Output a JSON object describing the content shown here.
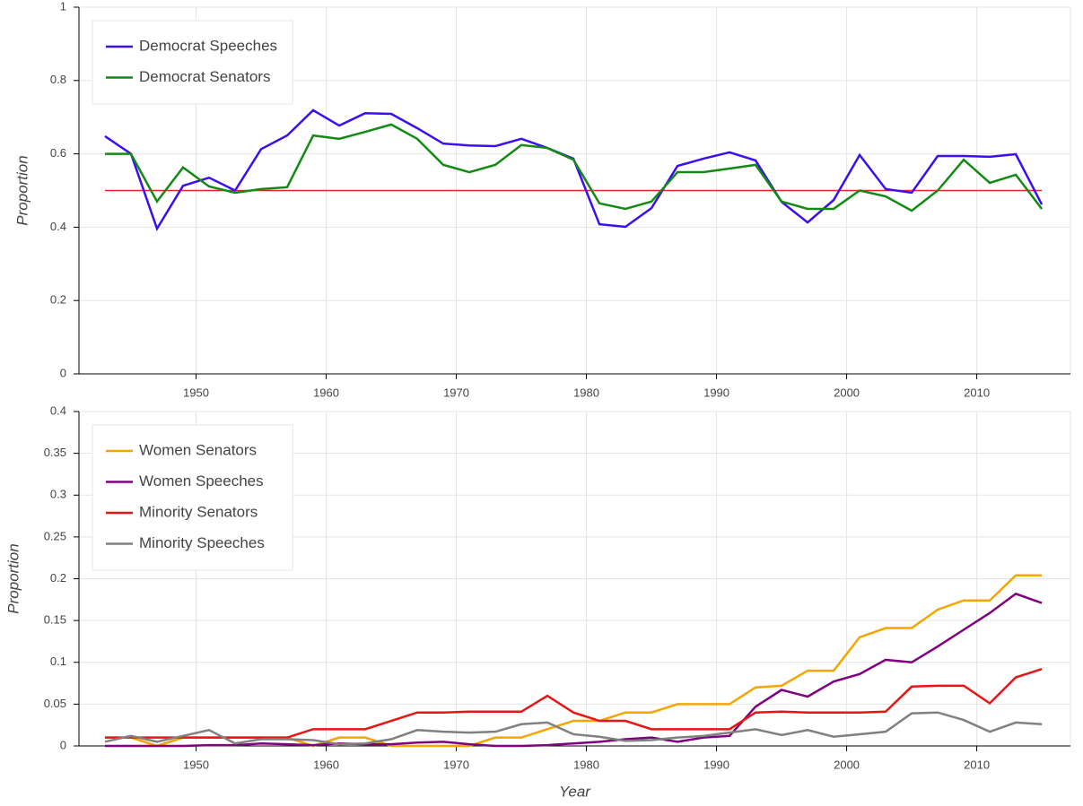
{
  "chart_data": [
    {
      "type": "line",
      "ylabel": "Proportion",
      "x": [
        1943,
        1945,
        1947,
        1949,
        1951,
        1953,
        1955,
        1957,
        1959,
        1961,
        1963,
        1965,
        1967,
        1969,
        1971,
        1973,
        1975,
        1977,
        1979,
        1981,
        1983,
        1985,
        1987,
        1989,
        1991,
        1993,
        1995,
        1997,
        1999,
        2001,
        2003,
        2005,
        2007,
        2009,
        2011,
        2013,
        2015
      ],
      "series": [
        {
          "name": "Democrat Speeches",
          "color": "#3c0ff2",
          "values": [
            0.648,
            0.6,
            0.396,
            0.513,
            0.535,
            0.5,
            0.613,
            0.65,
            0.719,
            0.677,
            0.711,
            0.709,
            0.67,
            0.628,
            0.623,
            0.621,
            0.641,
            0.616,
            0.587,
            0.408,
            0.401,
            0.452,
            0.567,
            0.587,
            0.604,
            0.582,
            0.469,
            0.413,
            0.474,
            0.597,
            0.504,
            0.494,
            0.594,
            0.594,
            0.592,
            0.599,
            0.462
          ]
        },
        {
          "name": "Democrat Senators",
          "color": "#138a13",
          "values": [
            0.6,
            0.6,
            0.47,
            0.563,
            0.511,
            0.494,
            0.504,
            0.509,
            0.65,
            0.641,
            0.66,
            0.68,
            0.641,
            0.57,
            0.55,
            0.57,
            0.624,
            0.616,
            0.584,
            0.465,
            0.45,
            0.47,
            0.55,
            0.55,
            0.56,
            0.57,
            0.47,
            0.45,
            0.45,
            0.5,
            0.484,
            0.445,
            0.5,
            0.584,
            0.521,
            0.543,
            0.45
          ]
        }
      ],
      "hline": {
        "value": 0.5,
        "color": "#ee2222"
      },
      "xlim": [
        1941,
        2017.2
      ],
      "xticks": [
        1950,
        1960,
        1970,
        1980,
        1990,
        2000,
        2010
      ],
      "ylim": [
        0,
        1
      ],
      "yticks": [
        0,
        0.2,
        0.4,
        0.6,
        0.8,
        1
      ],
      "grid": true,
      "legend": "top_left"
    },
    {
      "type": "line",
      "ylabel": "Proportion",
      "xlabel": "Year",
      "x": [
        1943,
        1945,
        1947,
        1949,
        1951,
        1953,
        1955,
        1957,
        1959,
        1961,
        1963,
        1965,
        1967,
        1969,
        1971,
        1973,
        1975,
        1977,
        1979,
        1981,
        1983,
        1985,
        1987,
        1989,
        1991,
        1993,
        1995,
        1997,
        1999,
        2001,
        2003,
        2005,
        2007,
        2009,
        2011,
        2013,
        2015
      ],
      "series": [
        {
          "name": "Women Senators",
          "color": "#f5a500",
          "values": [
            0.01,
            0.01,
            0.0,
            0.01,
            0.01,
            0.01,
            0.01,
            0.01,
            0.0,
            0.01,
            0.01,
            0.0,
            0.0,
            0.0,
            0.0,
            0.01,
            0.01,
            0.02,
            0.03,
            0.03,
            0.04,
            0.04,
            0.05,
            0.05,
            0.05,
            0.07,
            0.072,
            0.09,
            0.09,
            0.13,
            0.141,
            0.141,
            0.163,
            0.174,
            0.174,
            0.204,
            0.204
          ]
        },
        {
          "name": "Women Speeches",
          "color": "#800080",
          "values": [
            0.0,
            0.0,
            0.0,
            0.0,
            0.001,
            0.001,
            0.003,
            0.002,
            0.001,
            0.003,
            0.002,
            0.002,
            0.004,
            0.005,
            0.002,
            0.0,
            0.0,
            0.001,
            0.003,
            0.005,
            0.008,
            0.01,
            0.005,
            0.01,
            0.012,
            0.047,
            0.067,
            0.059,
            0.077,
            0.086,
            0.103,
            0.1,
            0.119,
            0.139,
            0.159,
            0.182,
            0.171
          ]
        },
        {
          "name": "Minority Senators",
          "color": "#e81515",
          "values": [
            0.01,
            0.01,
            0.01,
            0.01,
            0.01,
            0.01,
            0.01,
            0.01,
            0.02,
            0.02,
            0.02,
            0.03,
            0.04,
            0.04,
            0.041,
            0.041,
            0.041,
            0.06,
            0.04,
            0.03,
            0.03,
            0.02,
            0.02,
            0.02,
            0.02,
            0.04,
            0.041,
            0.04,
            0.04,
            0.04,
            0.041,
            0.071,
            0.072,
            0.072,
            0.051,
            0.082,
            0.092
          ]
        },
        {
          "name": "Minority Speeches",
          "color": "#808080",
          "values": [
            0.005,
            0.012,
            0.005,
            0.012,
            0.019,
            0.003,
            0.008,
            0.008,
            0.007,
            0.002,
            0.003,
            0.008,
            0.019,
            0.017,
            0.016,
            0.017,
            0.026,
            0.028,
            0.014,
            0.011,
            0.006,
            0.007,
            0.01,
            0.012,
            0.016,
            0.02,
            0.013,
            0.019,
            0.011,
            0.014,
            0.017,
            0.039,
            0.04,
            0.031,
            0.017,
            0.028,
            0.026
          ]
        }
      ],
      "xlim": [
        1941,
        2017.2
      ],
      "xticks": [
        1950,
        1960,
        1970,
        1980,
        1990,
        2000,
        2010
      ],
      "ylim": [
        0,
        0.4
      ],
      "yticks": [
        0,
        0.05,
        0.1,
        0.15,
        0.2,
        0.25,
        0.3,
        0.35,
        0.4
      ],
      "grid": true,
      "legend": "top_left"
    }
  ]
}
